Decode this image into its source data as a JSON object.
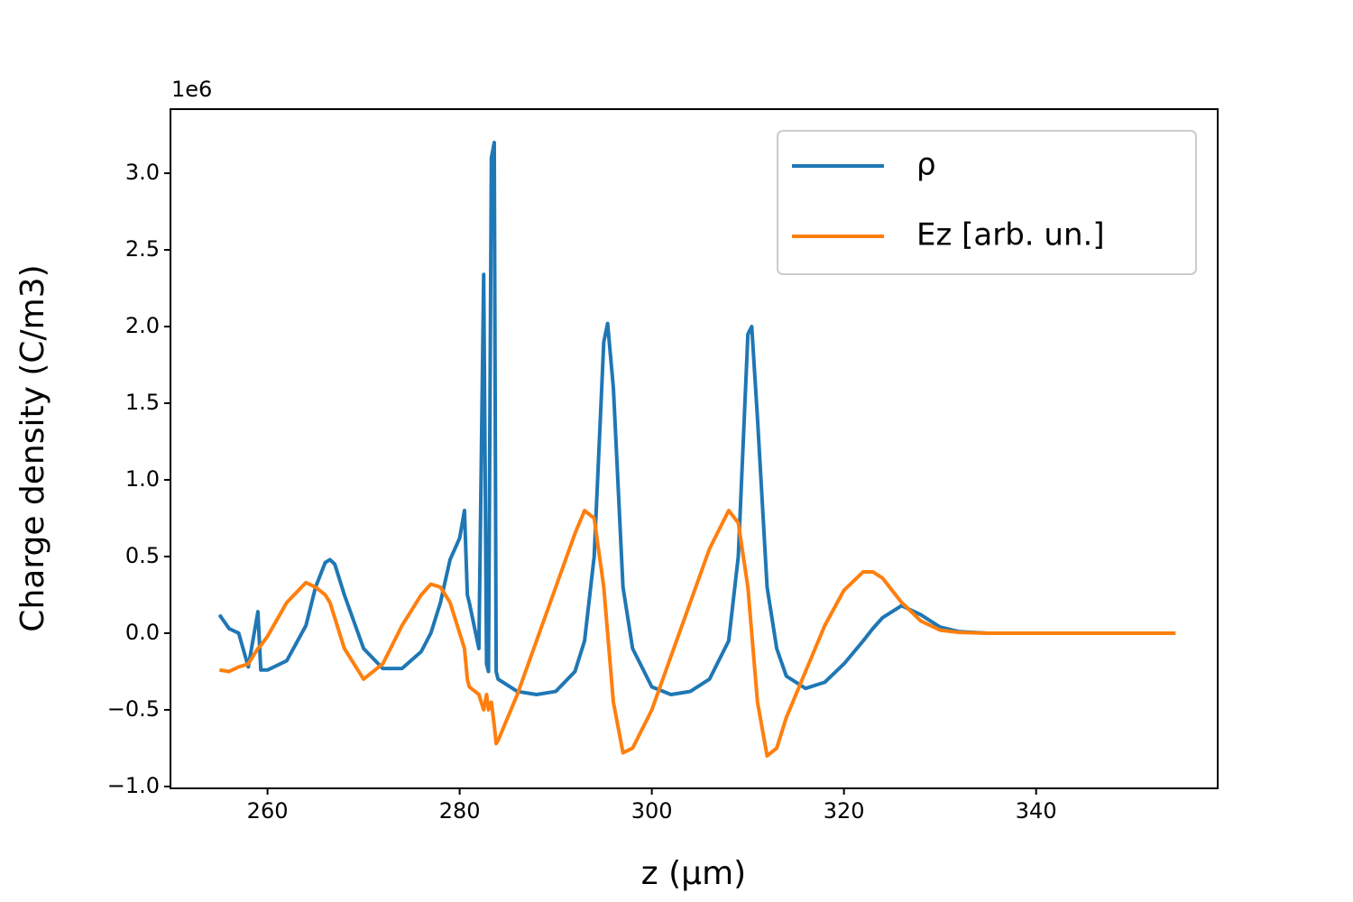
{
  "chart_data": {
    "type": "line",
    "y_offset_label": "1e6",
    "x_label": "z (μm)",
    "y_label": "Charge density (C/m3)",
    "x": [
      255,
      256,
      257,
      258,
      259,
      259.3,
      260,
      262,
      264,
      265,
      266,
      266.5,
      267,
      268,
      270,
      272,
      274,
      276,
      277,
      278,
      279,
      280,
      280.5,
      280.8,
      281,
      282,
      282.5,
      282.8,
      283,
      283.3,
      283.6,
      283.8,
      284,
      286,
      288,
      290,
      292,
      293,
      294,
      295,
      295.4,
      296,
      297,
      298,
      300,
      302,
      304,
      306,
      308,
      309,
      310,
      310.4,
      311,
      312,
      313,
      314,
      316,
      318,
      320,
      322,
      323,
      324,
      326,
      328,
      330,
      332,
      335,
      340,
      345,
      350,
      354.5
    ],
    "series": [
      {
        "name": "ρ",
        "color": "#1f77b4",
        "values": [
          0.12,
          0.03,
          0.0,
          -0.22,
          0.14,
          -0.24,
          -0.24,
          -0.18,
          0.05,
          0.3,
          0.46,
          0.48,
          0.45,
          0.25,
          -0.1,
          -0.23,
          -0.23,
          -0.12,
          0.0,
          0.2,
          0.48,
          0.62,
          0.8,
          0.25,
          0.2,
          -0.1,
          2.34,
          -0.2,
          -0.25,
          3.1,
          3.2,
          -0.25,
          -0.3,
          -0.38,
          -0.4,
          -0.38,
          -0.25,
          -0.05,
          0.5,
          1.9,
          2.02,
          1.6,
          0.3,
          -0.1,
          -0.35,
          -0.4,
          -0.38,
          -0.3,
          -0.05,
          0.5,
          1.95,
          2.0,
          1.4,
          0.3,
          -0.1,
          -0.28,
          -0.36,
          -0.32,
          -0.2,
          -0.05,
          0.03,
          0.1,
          0.18,
          0.12,
          0.04,
          0.01,
          0.0,
          0.0,
          0.0,
          0.0,
          0.0
        ]
      },
      {
        "name": "Ez [arb. un.]",
        "color": "#ff7f0e",
        "values": [
          -0.24,
          -0.25,
          -0.22,
          -0.2,
          -0.1,
          -0.08,
          -0.02,
          0.2,
          0.33,
          0.3,
          0.25,
          0.2,
          0.1,
          -0.1,
          -0.3,
          -0.2,
          0.05,
          0.25,
          0.32,
          0.3,
          0.2,
          0.0,
          -0.1,
          -0.3,
          -0.35,
          -0.4,
          -0.5,
          -0.4,
          -0.5,
          -0.45,
          -0.6,
          -0.72,
          -0.7,
          -0.4,
          -0.05,
          0.3,
          0.65,
          0.8,
          0.75,
          0.3,
          0.0,
          -0.45,
          -0.78,
          -0.75,
          -0.5,
          -0.15,
          0.2,
          0.55,
          0.8,
          0.72,
          0.3,
          0.0,
          -0.45,
          -0.8,
          -0.75,
          -0.55,
          -0.25,
          0.05,
          0.28,
          0.4,
          0.4,
          0.36,
          0.2,
          0.08,
          0.02,
          0.005,
          0.0,
          0.0,
          0.0,
          0.0,
          0.0
        ]
      }
    ],
    "xlim": [
      249.9,
      358.9
    ],
    "ylim": [
      -1.012,
      3.418
    ],
    "xticks": [
      260,
      280,
      300,
      320,
      340
    ],
    "yticks": [
      {
        "value": -1,
        "label": "−1.0"
      },
      {
        "value": -0.5,
        "label": "−0.5"
      },
      {
        "value": 0,
        "label": "0.0"
      },
      0.5,
      {
        "value": 1,
        "label": "1.0"
      },
      1.5,
      {
        "value": 2,
        "label": "2.0"
      },
      2.5,
      {
        "value": 3,
        "label": "3.0"
      }
    ],
    "legend": "upper right"
  }
}
